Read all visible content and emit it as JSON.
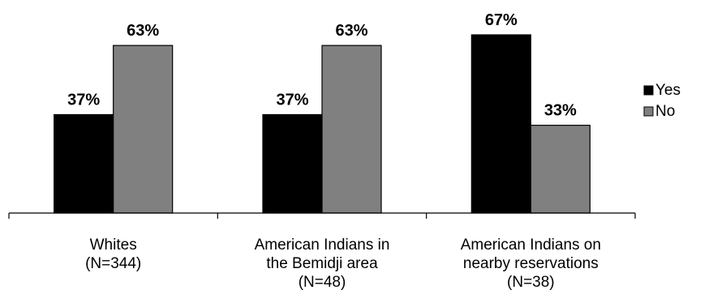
{
  "chart_data": {
    "type": "bar",
    "categories": [
      [
        "Whites",
        "(N=344)"
      ],
      [
        "American Indians in",
        "the Bemidji area",
        "(N=48)"
      ],
      [
        "American Indians on",
        "nearby reservations",
        "(N=38)"
      ]
    ],
    "series": [
      {
        "name": "Yes",
        "values": [
          37,
          37,
          67
        ],
        "labels": [
          "37%",
          "37%",
          "67%"
        ],
        "color": "#000000"
      },
      {
        "name": "No",
        "values": [
          63,
          63,
          33
        ],
        "labels": [
          "63%",
          "63%",
          "33%"
        ],
        "color": "#808080"
      }
    ],
    "ylim": [
      0,
      100
    ],
    "grid": false,
    "legend_position": "right"
  }
}
